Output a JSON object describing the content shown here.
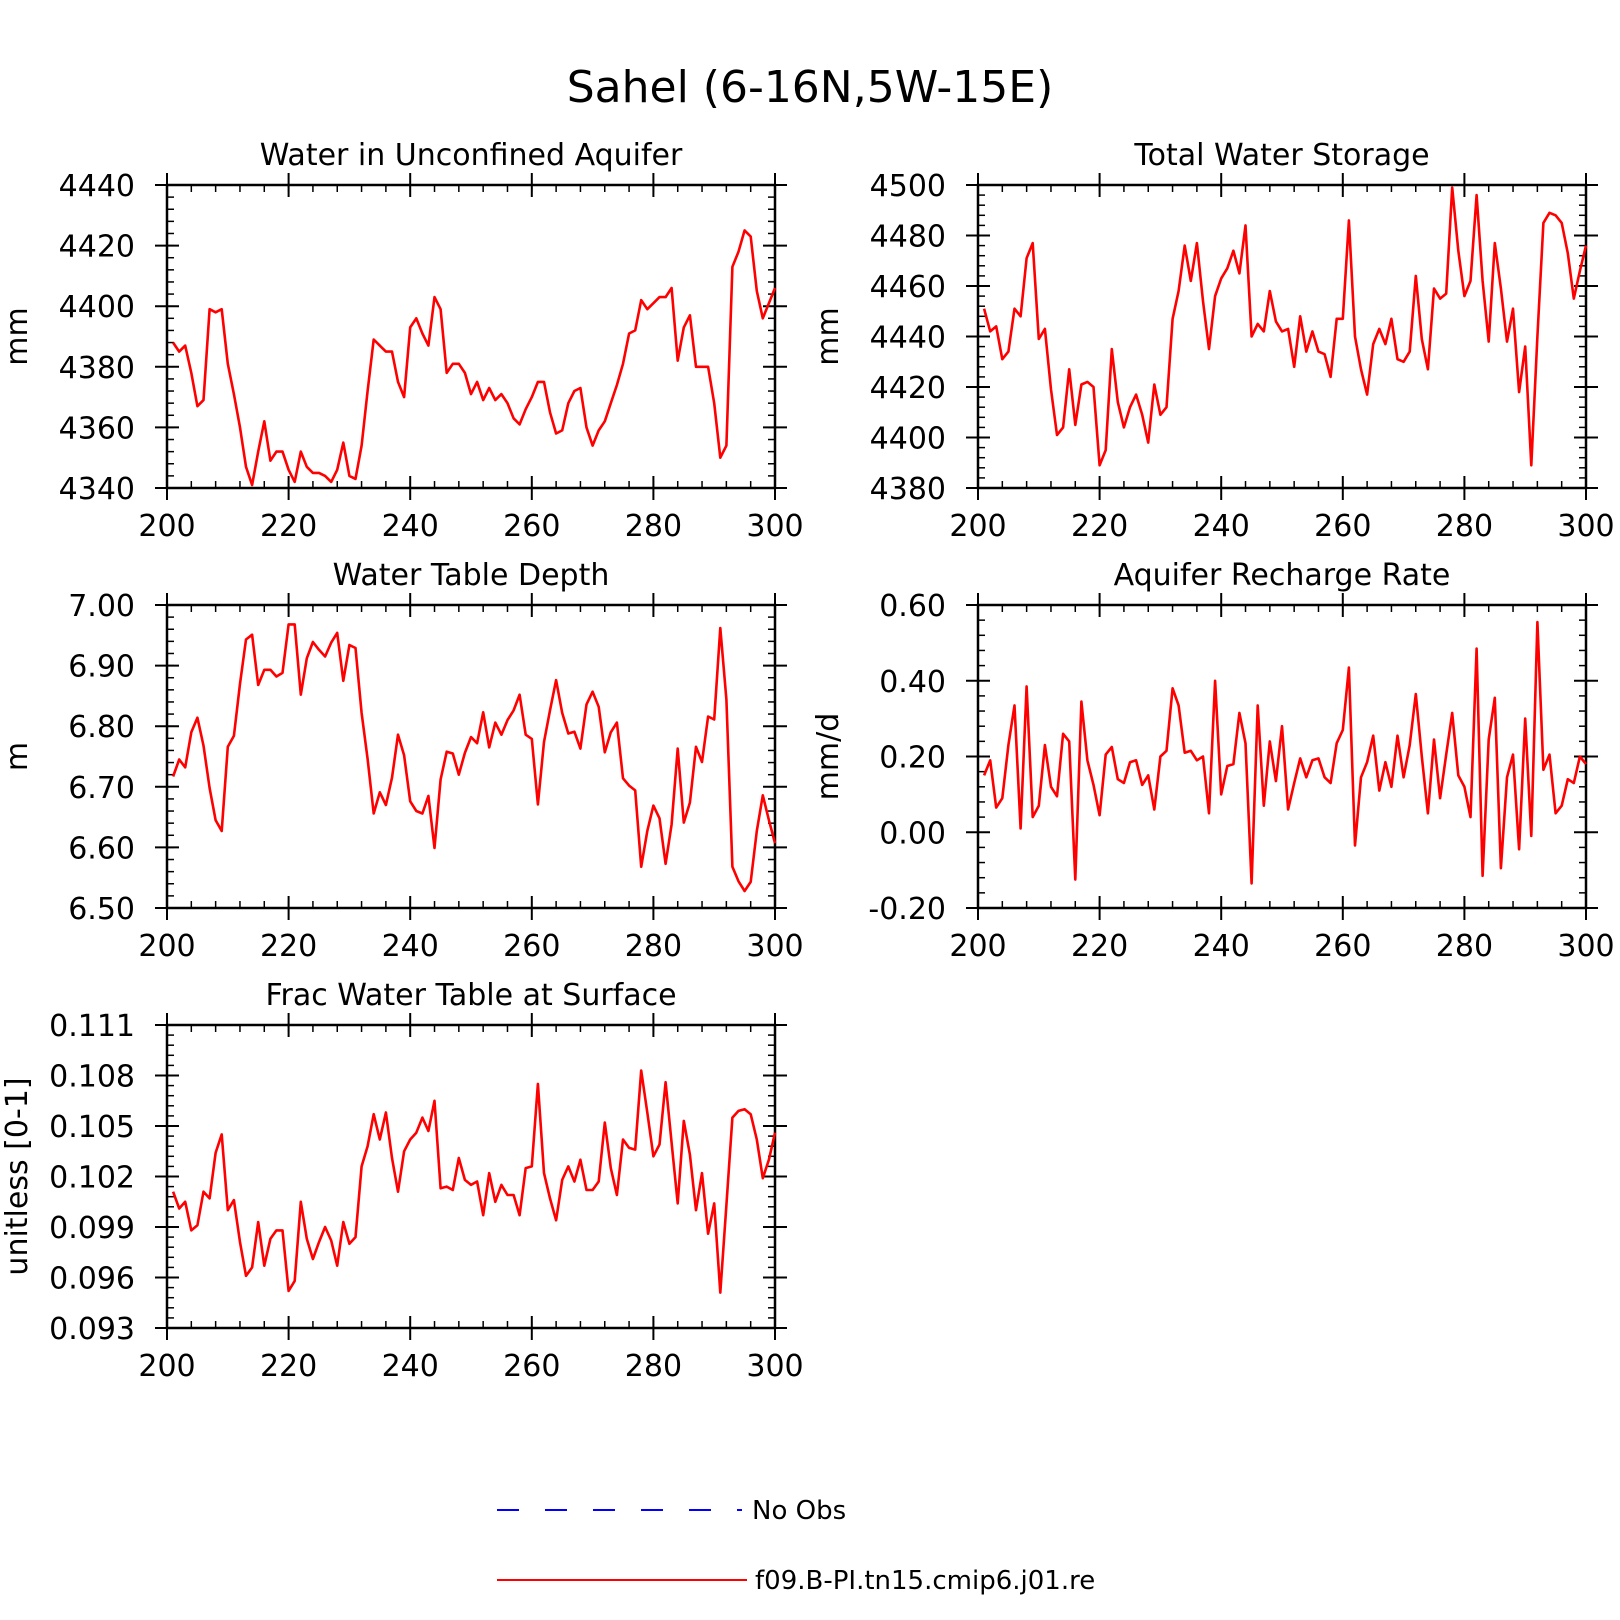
{
  "figure_title": "Sahel (6-16N,5W-15E)",
  "legend": {
    "items": [
      {
        "label": "No Obs",
        "color": "#0000ff",
        "style": "dashed"
      },
      {
        "label": "f09.B-PI.tn15.cmip6.j01.re",
        "color": "#ff0000",
        "style": "solid"
      }
    ]
  },
  "chart_data": [
    {
      "type": "line",
      "title": "Water in Unconfined Aquifer",
      "xlabel": "",
      "ylabel": "mm",
      "xlim": [
        200,
        300
      ],
      "ylim": [
        4340,
        4440
      ],
      "xticks": [
        "200",
        "220",
        "240",
        "260",
        "280",
        "300"
      ],
      "yticks": [
        "4340",
        "4360",
        "4380",
        "4400",
        "4420",
        "4440"
      ],
      "series": [
        {
          "color": "#ff0000",
          "x_start": 201,
          "values": [
            4388,
            4385,
            4387,
            4378,
            4367,
            4369,
            4399,
            4398,
            4399,
            4381,
            4371,
            4360,
            4347,
            4341,
            4352,
            4362,
            4349,
            4352,
            4352,
            4346,
            4342,
            4352,
            4347,
            4345,
            4345,
            4344,
            4342,
            4346,
            4355,
            4344,
            4343,
            4354,
            4372,
            4389,
            4387,
            4385,
            4385,
            4375,
            4370,
            4393,
            4396,
            4391,
            4387,
            4403,
            4399,
            4378,
            4381,
            4381,
            4378,
            4371,
            4375,
            4369,
            4373,
            4369,
            4371,
            4368,
            4363,
            4361,
            4366,
            4370,
            4375,
            4375,
            4365,
            4358,
            4359,
            4368,
            4372,
            4373,
            4360,
            4354,
            4359,
            4362,
            4368,
            4374,
            4381,
            4391,
            4392,
            4402,
            4399,
            4401,
            4403,
            4403,
            4406,
            4382,
            4393,
            4397,
            4380,
            4380,
            4380,
            4368,
            4350,
            4354,
            4413,
            4418,
            4425,
            4423,
            4405,
            4396,
            4401,
            4406
          ]
        }
      ]
    },
    {
      "type": "line",
      "title": "Total Water Storage",
      "xlabel": "",
      "ylabel": "mm",
      "xlim": [
        200,
        300
      ],
      "ylim": [
        4380,
        4500
      ],
      "xticks": [
        "200",
        "220",
        "240",
        "260",
        "280",
        "300"
      ],
      "yticks": [
        "4380",
        "4400",
        "4420",
        "4440",
        "4460",
        "4480",
        "4500"
      ],
      "series": [
        {
          "color": "#ff0000",
          "x_start": 201,
          "values": [
            4451,
            4442,
            4444,
            4431,
            4434,
            4451,
            4448,
            4471,
            4477,
            4439,
            4443,
            4419,
            4401,
            4404,
            4427,
            4405,
            4421,
            4422,
            4420,
            4389,
            4395,
            4435,
            4414,
            4404,
            4412,
            4417,
            4409,
            4398,
            4421,
            4409,
            4412,
            4447,
            4458,
            4476,
            4462,
            4477,
            4454,
            4435,
            4456,
            4463,
            4467,
            4474,
            4465,
            4484,
            4440,
            4445,
            4442,
            4458,
            4446,
            4442,
            4443,
            4428,
            4448,
            4434,
            4442,
            4434,
            4433,
            4424,
            4447,
            4447,
            4486,
            4440,
            4427,
            4417,
            4437,
            4443,
            4437,
            4447,
            4431,
            4430,
            4434,
            4464,
            4439,
            4427,
            4459,
            4455,
            4457,
            4499,
            4474,
            4456,
            4462,
            4496,
            4462,
            4438,
            4477,
            4459,
            4438,
            4451,
            4418,
            4436,
            4389,
            4440,
            4485,
            4489,
            4488,
            4485,
            4473,
            4455,
            4466,
            4476
          ]
        }
      ]
    },
    {
      "type": "line",
      "title": "Water Table Depth",
      "xlabel": "",
      "ylabel": "m",
      "xlim": [
        200,
        300
      ],
      "ylim": [
        6.5,
        7.0
      ],
      "xticks": [
        "200",
        "220",
        "240",
        "260",
        "280",
        "300"
      ],
      "yticks": [
        "6.50",
        "6.60",
        "6.70",
        "6.80",
        "6.90",
        "7.00"
      ],
      "series": [
        {
          "color": "#ff0000",
          "x_start": 201,
          "values": [
            6.717,
            6.745,
            6.732,
            6.79,
            6.814,
            6.768,
            6.698,
            6.645,
            6.627,
            6.766,
            6.784,
            6.87,
            6.943,
            6.951,
            6.868,
            6.893,
            6.893,
            6.882,
            6.888,
            6.968,
            6.968,
            6.852,
            6.912,
            6.939,
            6.926,
            6.915,
            6.938,
            6.954,
            6.875,
            6.934,
            6.929,
            6.822,
            6.746,
            6.656,
            6.691,
            6.67,
            6.715,
            6.786,
            6.752,
            6.676,
            6.66,
            6.656,
            6.685,
            6.599,
            6.712,
            6.758,
            6.755,
            6.72,
            6.756,
            6.782,
            6.772,
            6.823,
            6.765,
            6.806,
            6.786,
            6.81,
            6.826,
            6.852,
            6.786,
            6.779,
            6.671,
            6.774,
            6.826,
            6.876,
            6.822,
            6.788,
            6.791,
            6.763,
            6.836,
            6.857,
            6.832,
            6.757,
            6.79,
            6.806,
            6.714,
            6.702,
            6.694,
            6.568,
            6.627,
            6.669,
            6.648,
            6.573,
            6.638,
            6.763,
            6.641,
            6.674,
            6.766,
            6.741,
            6.816,
            6.811,
            6.962,
            6.844,
            6.568,
            6.544,
            6.528,
            6.543,
            6.627,
            6.686,
            6.645,
            6.607
          ]
        }
      ]
    },
    {
      "type": "line",
      "title": "Aquifer Recharge Rate",
      "xlabel": "",
      "ylabel": "mm/d",
      "xlim": [
        200,
        300
      ],
      "ylim": [
        -0.2,
        0.6
      ],
      "xticks": [
        "200",
        "220",
        "240",
        "260",
        "280",
        "300"
      ],
      "yticks": [
        "-0.20",
        "0.00",
        "0.20",
        "0.40",
        "0.60"
      ],
      "series": [
        {
          "color": "#ff0000",
          "x_start": 201,
          "values": [
            0.15,
            0.19,
            0.065,
            0.09,
            0.23,
            0.335,
            0.01,
            0.385,
            0.04,
            0.07,
            0.23,
            0.12,
            0.095,
            0.26,
            0.24,
            -0.125,
            0.345,
            0.19,
            0.125,
            0.045,
            0.205,
            0.225,
            0.14,
            0.13,
            0.185,
            0.19,
            0.125,
            0.15,
            0.06,
            0.2,
            0.215,
            0.38,
            0.335,
            0.21,
            0.215,
            0.19,
            0.2,
            0.05,
            0.4,
            0.1,
            0.175,
            0.18,
            0.315,
            0.235,
            -0.135,
            0.335,
            0.07,
            0.24,
            0.135,
            0.28,
            0.06,
            0.13,
            0.195,
            0.145,
            0.19,
            0.195,
            0.145,
            0.13,
            0.235,
            0.27,
            0.435,
            -0.035,
            0.145,
            0.185,
            0.255,
            0.11,
            0.185,
            0.12,
            0.255,
            0.145,
            0.23,
            0.365,
            0.2,
            0.05,
            0.245,
            0.09,
            0.205,
            0.315,
            0.15,
            0.12,
            0.04,
            0.485,
            -0.115,
            0.245,
            0.355,
            -0.095,
            0.145,
            0.205,
            -0.045,
            0.3,
            -0.01,
            0.555,
            0.165,
            0.205,
            0.05,
            0.07,
            0.14,
            0.13,
            0.2,
            0.18
          ]
        }
      ]
    },
    {
      "type": "line",
      "title": "Frac Water Table at Surface",
      "xlabel": "",
      "ylabel": "unitless [0-1]",
      "xlim": [
        200,
        300
      ],
      "ylim": [
        0.093,
        0.111
      ],
      "xticks": [
        "200",
        "220",
        "240",
        "260",
        "280",
        "300"
      ],
      "yticks": [
        "0.093",
        "0.096",
        "0.099",
        "0.102",
        "0.105",
        "0.108",
        "0.111"
      ],
      "series": [
        {
          "color": "#ff0000",
          "x_start": 201,
          "values": [
            0.1011,
            0.1001,
            0.1005,
            0.0988,
            0.0991,
            0.1011,
            0.1007,
            0.1034,
            0.1045,
            0.1,
            0.1006,
            0.0981,
            0.0961,
            0.0966,
            0.0993,
            0.0967,
            0.0983,
            0.0988,
            0.0988,
            0.0952,
            0.0958,
            0.1005,
            0.0983,
            0.0971,
            0.0981,
            0.099,
            0.0982,
            0.0967,
            0.0993,
            0.098,
            0.0984,
            0.1026,
            0.1038,
            0.1057,
            0.1042,
            0.1058,
            0.1031,
            0.1011,
            0.1035,
            0.1042,
            0.1046,
            0.1055,
            0.1047,
            0.1065,
            0.1013,
            0.1014,
            0.1012,
            0.1031,
            0.1018,
            0.1015,
            0.1017,
            0.0997,
            0.1022,
            0.1005,
            0.1015,
            0.1009,
            0.1009,
            0.0997,
            0.1025,
            0.1026,
            0.1075,
            0.1022,
            0.1007,
            0.0994,
            0.1018,
            0.1026,
            0.1017,
            0.103,
            0.1012,
            0.1012,
            0.1017,
            0.1052,
            0.1025,
            0.1009,
            0.1042,
            0.1037,
            0.1036,
            0.1083,
            0.1058,
            0.1032,
            0.1039,
            0.1076,
            0.104,
            0.1004,
            0.1053,
            0.1033,
            0.1,
            0.1022,
            0.0986,
            0.1004,
            0.0951,
            0.1003,
            0.1055,
            0.1059,
            0.106,
            0.1057,
            0.1042,
            0.1019,
            0.103,
            0.1046
          ]
        }
      ]
    }
  ]
}
